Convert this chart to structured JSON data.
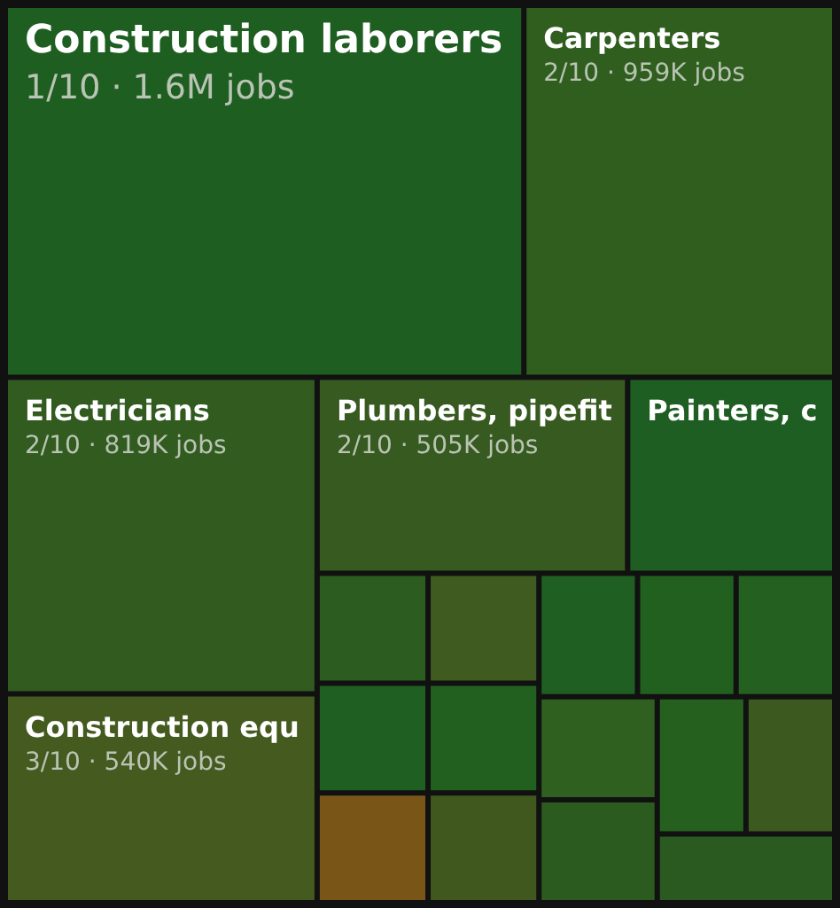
{
  "chart_data": {
    "type": "other",
    "categories": [
      "Construction laborers",
      "Carpenters",
      "Electricians",
      "Construction equ",
      "Plumbers, pipefit",
      "Painters, c",
      null,
      null,
      null,
      null,
      null,
      null,
      null,
      null,
      null,
      null,
      null,
      null,
      null,
      null
    ],
    "values": [
      1600000,
      959000,
      819000,
      540000,
      505000,
      null,
      null,
      null,
      null,
      null,
      null,
      null,
      null,
      null,
      null,
      null,
      null,
      null,
      null,
      null
    ],
    "value_labels": [
      "1/10 · 1.6M jobs",
      "2/10 · 959K jobs",
      "2/10 · 819K jobs",
      "3/10 · 540K jobs",
      "2/10 · 505K jobs",
      null,
      null,
      null,
      null,
      null,
      null,
      null,
      null,
      null,
      null,
      null,
      null,
      null,
      null,
      null
    ],
    "colors": [
      "#1f5e21",
      "#2f5e1e",
      "#325b20",
      "#445a1f",
      "#365a1f",
      "#1f5e22",
      "#2c5c1f",
      "#1f5f22",
      "#7a5518",
      "#3f5b1f",
      "#21601f",
      "#40581d",
      "#1f5f22",
      "#22601f",
      "#24601f",
      "#30601f",
      "#2b5b1f",
      "#25601f",
      "#3c5a1f",
      "#2a5a1f"
    ]
  }
}
